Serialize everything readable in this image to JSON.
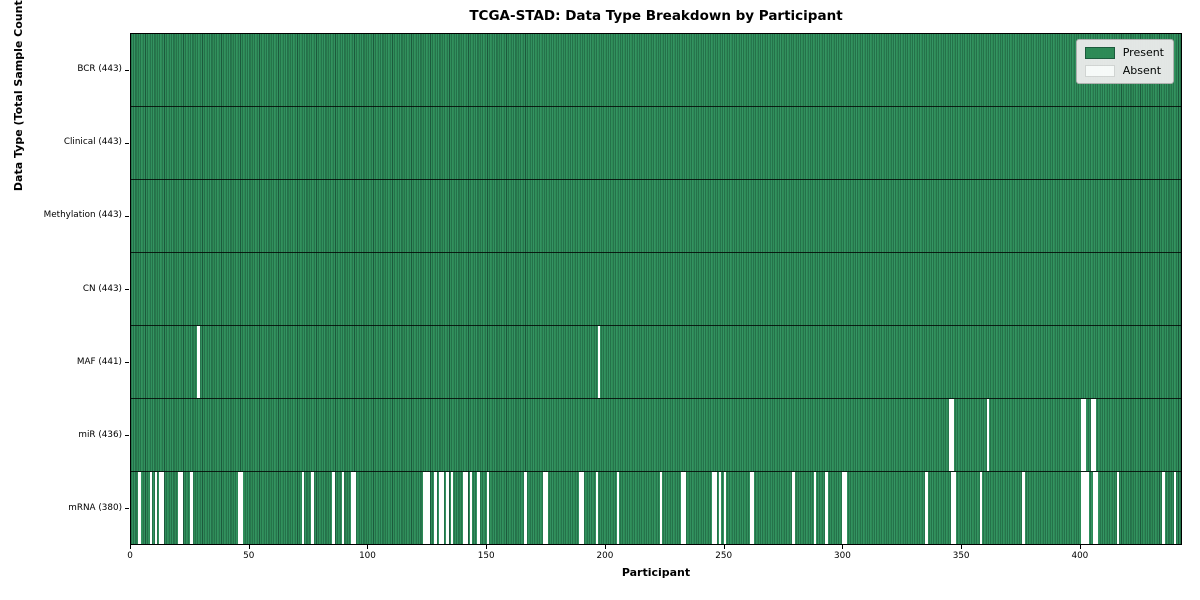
{
  "chart_data": {
    "type": "heatmap",
    "title": "TCGA-STAD: Data Type Breakdown by Participant",
    "xlabel": "Participant",
    "ylabel": "Data Type (Total Sample Count)",
    "n_participants": 443,
    "xlim": [
      0,
      443
    ],
    "x_ticks": [
      0,
      50,
      100,
      150,
      200,
      250,
      300,
      350,
      400
    ],
    "grid": false,
    "legend": {
      "position": "upper right",
      "present_label": "Present",
      "absent_label": "Absent"
    },
    "colors": {
      "present": "#2e8b57",
      "present_edge": "#1c5a3c",
      "absent": "#ffffff",
      "legend_bg": "#ebebeb"
    },
    "rows": [
      {
        "name": "BCR",
        "count": 443,
        "label": "BCR (443)",
        "absent": []
      },
      {
        "name": "Clinical",
        "count": 443,
        "label": "Clinical (443)",
        "absent": []
      },
      {
        "name": "Methylation",
        "count": 443,
        "label": "Methylation (443)",
        "absent": []
      },
      {
        "name": "CN",
        "count": 443,
        "label": "CN (443)",
        "absent": []
      },
      {
        "name": "MAF",
        "count": 441,
        "label": "MAF (441)",
        "absent": [
          28,
          197
        ]
      },
      {
        "name": "miR",
        "count": 436,
        "label": "miR (436)",
        "absent": [
          345,
          346,
          361,
          401,
          402,
          405,
          406
        ]
      },
      {
        "name": "mRNA",
        "count": 380,
        "label": "mRNA (380)",
        "absent": [
          3,
          8,
          10,
          12,
          13,
          20,
          21,
          25,
          45,
          46,
          72,
          76,
          85,
          89,
          93,
          94,
          123,
          124,
          125,
          128,
          130,
          131,
          133,
          135,
          140,
          141,
          143,
          146,
          150,
          166,
          174,
          175,
          189,
          190,
          196,
          205,
          223,
          232,
          233,
          245,
          246,
          248,
          250,
          261,
          262,
          279,
          288,
          293,
          300,
          301,
          335,
          346,
          347,
          358,
          376,
          401,
          402,
          403,
          406,
          407,
          416,
          435,
          440
        ]
      }
    ]
  }
}
